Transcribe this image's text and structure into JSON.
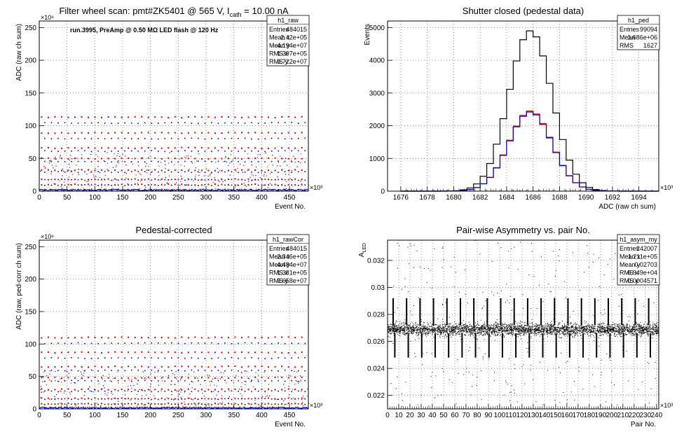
{
  "chart_data": [
    {
      "type": "scatter",
      "title": "Filter wheel scan: pmt#ZK5401 @   565 V, I",
      "title_sub": "cath",
      "title_tail": " = 10.00 nA",
      "annotation": "run.3995, PreAmp @ 0.50 MΩ LED flash @  120 Hz",
      "xlabel": "Event No.",
      "ylabel": "ADC (raw ch sum)",
      "x_multiplier": "×10³",
      "y_multiplier": "×10⁶",
      "xlim": [
        0,
        484
      ],
      "ylim": [
        0,
        260
      ],
      "xticks": [
        0,
        50,
        100,
        150,
        200,
        250,
        300,
        350,
        400,
        450
      ],
      "yticks": [
        0,
        50,
        100,
        150,
        200,
        250
      ],
      "colors": {
        "red": "#e00000",
        "blue": "#0000cc"
      },
      "stats": {
        "name": "h1_raw",
        "rows": [
          [
            "Entries",
            "484015"
          ],
          [
            "Mean x",
            "2.42e+05"
          ],
          [
            "Mean y",
            "4.194e+07"
          ],
          [
            "RMS x",
            "1.397e+05"
          ],
          [
            "RMS y",
            "3.722e+07"
          ]
        ]
      },
      "levels_red": [
        113,
        89,
        66,
        50,
        32,
        18,
        10
      ],
      "levels_blue": [
        104,
        80,
        61,
        45,
        29,
        17,
        9,
        2
      ],
      "period": 24
    },
    {
      "type": "line",
      "title": "Shutter closed (pedestal data)",
      "xlabel": "ADC (raw ch sum)",
      "ylabel": "Events",
      "x_multiplier": "×10³",
      "xlim": [
        1675,
        1695.5
      ],
      "ylim": [
        0,
        5200
      ],
      "xticks": [
        1676,
        1678,
        1680,
        1682,
        1684,
        1686,
        1688,
        1690,
        1692,
        1694
      ],
      "yticks": [
        0,
        1000,
        2000,
        3000,
        4000,
        5000
      ],
      "stats": {
        "name": "h1_ped",
        "rows": [
          [
            "Entries",
            "99094"
          ],
          [
            "Mean",
            "1.686e+06"
          ],
          [
            "RMS",
            "1627"
          ]
        ]
      },
      "series": [
        {
          "color": "#000000",
          "mean": 1685.8,
          "sigma": 1.627,
          "peak": 4900
        },
        {
          "color": "#e00000",
          "mean": 1685.8,
          "sigma": 1.627,
          "peak": 2450
        },
        {
          "color": "#0000cc",
          "mean": 1685.8,
          "sigma": 1.627,
          "peak": 2420
        }
      ]
    },
    {
      "type": "scatter",
      "title": "Pedestal-corrected",
      "xlabel": "Event No.",
      "ylabel": "ADC (raw, ped-corr ch sum)",
      "x_multiplier": "×10³",
      "y_multiplier": "×10⁶",
      "xlim": [
        0,
        484
      ],
      "ylim": [
        0,
        260
      ],
      "xticks": [
        0,
        50,
        100,
        150,
        200,
        250,
        300,
        350,
        400,
        450
      ],
      "yticks": [
        0,
        50,
        100,
        150,
        200,
        250
      ],
      "stats": {
        "name": "h1_rawCor",
        "rows": [
          [
            "Entries",
            "484015"
          ],
          [
            "Mean x",
            "2.346e+05"
          ],
          [
            "Mean y",
            "4.484e+07"
          ],
          [
            "RMS x",
            "1.381e+05"
          ],
          [
            "RMS y",
            "3.658e+07"
          ]
        ]
      },
      "levels_red": [
        110,
        87,
        65,
        48,
        30,
        16,
        8
      ],
      "levels_blue": [
        101,
        78,
        59,
        43,
        27,
        15,
        7,
        1
      ],
      "period": 24
    },
    {
      "type": "scatter",
      "title": "Pair-wise Asymmetry vs. pair No.",
      "xlabel": "Pair No.",
      "ylabel": "A",
      "ylabel_sub": "LED",
      "x_multiplier": "×10³",
      "xlim": [
        0,
        242
      ],
      "ylim": [
        0.021,
        0.0335
      ],
      "xticks": [
        0,
        10,
        20,
        30,
        40,
        50,
        60,
        70,
        80,
        90,
        100,
        110,
        120,
        130,
        140,
        150,
        160,
        170,
        180,
        190,
        200,
        210,
        220,
        230,
        240
      ],
      "yticks": [
        0.022,
        0.024,
        0.026,
        0.028,
        0.03,
        0.032
      ],
      "stats": {
        "name": "h1_asym_my",
        "rows": [
          [
            "Entries",
            "242007"
          ],
          [
            "Mean x",
            "1.211e+05"
          ],
          [
            "Mean y",
            "0.02703"
          ],
          [
            "RMS x",
            "6.949e+04"
          ],
          [
            "RMS y",
            "0.0004571"
          ]
        ]
      },
      "band_center": 0.0269,
      "band_halfwidth": 0.0004,
      "spike_period": 12
    }
  ]
}
